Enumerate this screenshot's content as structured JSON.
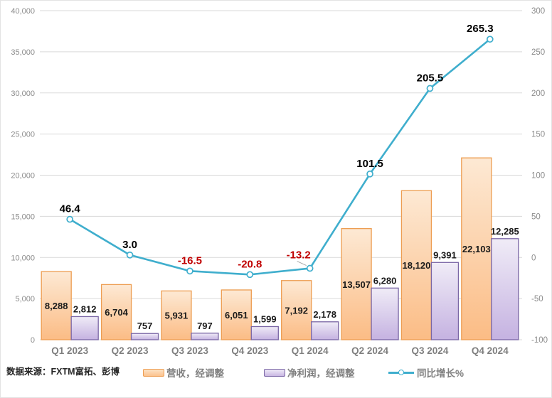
{
  "source_note": "数据来源：FXTM富拓、彭博",
  "legend": {
    "revenue": "营收，经调整",
    "profit": "净利润，经调整",
    "growth": "同比增长%"
  },
  "colors": {
    "grid": "#d9d9d9",
    "tick_label": "#8c8c8c",
    "x_label": "#7f7f7f",
    "bar_label": "#1a1a1a",
    "growth_label": "#000000",
    "negative": "#c00000",
    "leader": "#a6a6a6",
    "background": "#ffffff"
  },
  "chart_data": {
    "type": "bar",
    "subtype": "grouped bars with secondary-axis line (combo)",
    "title": "",
    "xlabel": "",
    "ylabel_left": "",
    "ylabel_right": "",
    "grid": true,
    "legend_position": "bottom",
    "categories": [
      "Q1 2023",
      "Q2 2023",
      "Q3 2023",
      "Q4 2023",
      "Q1 2024",
      "Q2 2024",
      "Q3 2024",
      "Q4 2024"
    ],
    "series": [
      {
        "name": "营收，经调整",
        "type": "bar",
        "axis": "left",
        "values": [
          8288,
          6704,
          5931,
          6051,
          7192,
          13507,
          18120,
          22103
        ],
        "labels": [
          "8,288",
          "6,704",
          "5,931",
          "6,051",
          "7,192",
          "13,507",
          "18,120",
          "22,103"
        ],
        "fill_top": "#fde9d4",
        "fill_bottom": "#fbbc85",
        "border": "#ed9d51"
      },
      {
        "name": "净利润，经调整",
        "type": "bar",
        "axis": "left",
        "values": [
          2812,
          757,
          797,
          1599,
          2178,
          6280,
          9391,
          12285
        ],
        "labels": [
          "2,812",
          "757",
          "797",
          "1,599",
          "2,178",
          "6,280",
          "9,391",
          "12,285"
        ],
        "fill_top": "#f0ecf7",
        "fill_bottom": "#c5b2e1",
        "border": "#7a66a5"
      },
      {
        "name": "同比增长%",
        "type": "line",
        "axis": "right",
        "values": [
          46.4,
          3.0,
          -16.5,
          -20.8,
          -13.2,
          101.5,
          205.5,
          265.3
        ],
        "labels": [
          "46.4",
          "3.0",
          "-16.5",
          "-20.8",
          "-13.2",
          "101.5",
          "205.5",
          "265.3"
        ],
        "color": "#3faecd",
        "marker_fill": "#ffffff",
        "label_offsets": [
          [
            0,
            0
          ],
          [
            0,
            0
          ],
          [
            0,
            0
          ],
          [
            0,
            0
          ],
          [
            -16,
            -4
          ],
          [
            0,
            0
          ],
          [
            0,
            0
          ],
          [
            -14,
            0
          ]
        ],
        "leader_index": 4
      }
    ],
    "left_axis": {
      "min": 0,
      "max": 40000,
      "step": 5000,
      "tick_labels": [
        "0",
        "5,000",
        "10,000",
        "15,000",
        "20,000",
        "25,000",
        "30,000",
        "35,000",
        "40,000"
      ]
    },
    "right_axis": {
      "min": -100,
      "max": 300,
      "step": 50,
      "tick_labels": [
        "-100",
        "-50",
        "0",
        "50",
        "100",
        "150",
        "200",
        "250",
        "300"
      ]
    }
  }
}
